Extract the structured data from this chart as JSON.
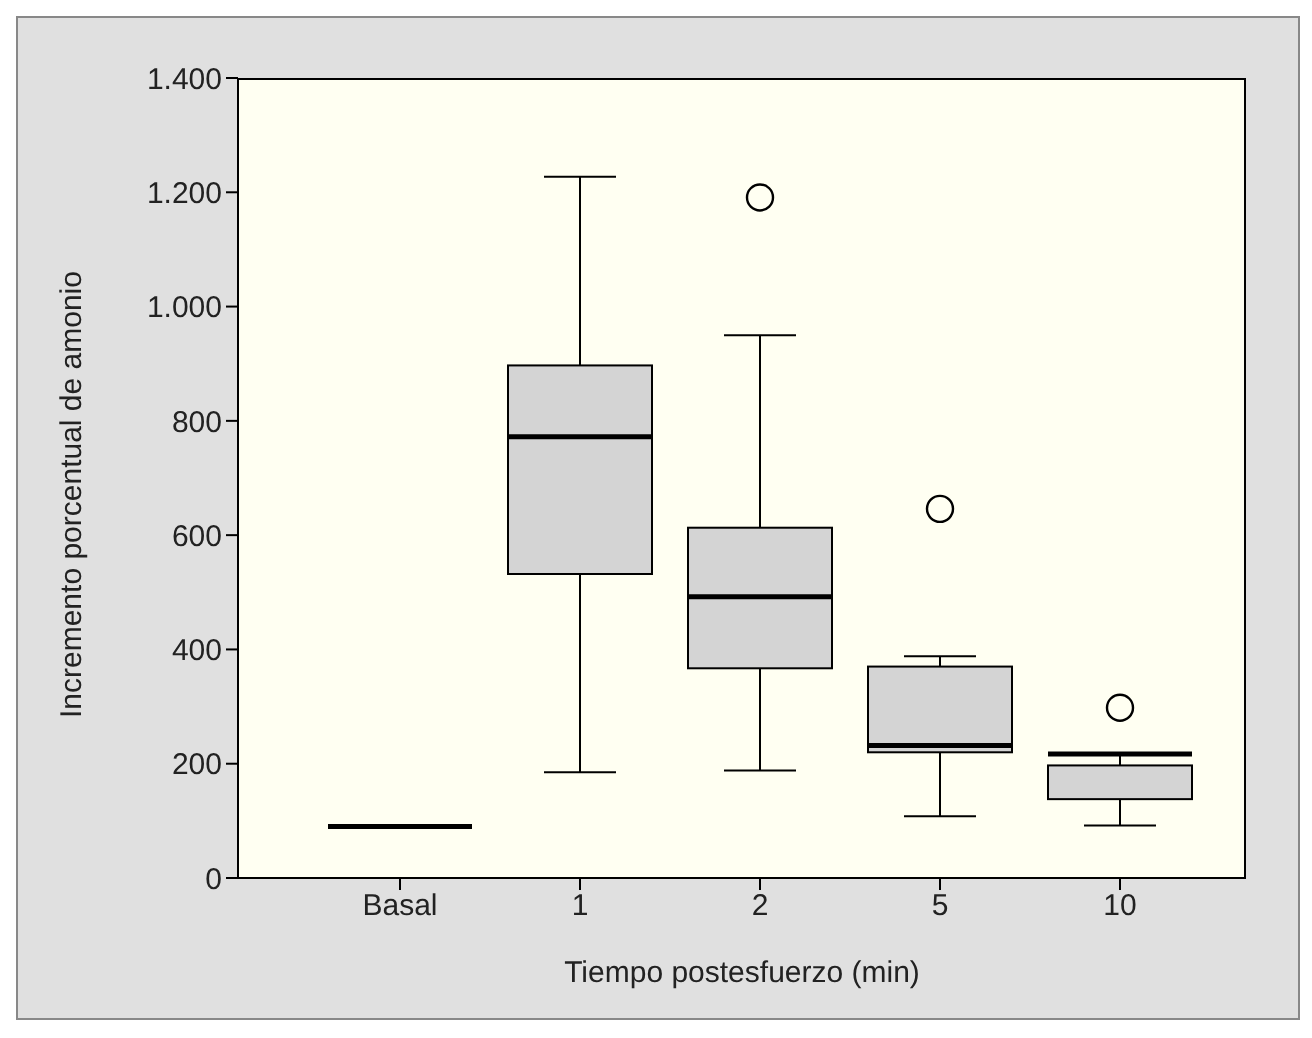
{
  "chart_data": {
    "type": "box",
    "xlabel": "Tiempo postesfuerzo (min)",
    "ylabel": "Incremento porcentual de amonio",
    "categories": [
      "Basal",
      "1",
      "2",
      "5",
      "10"
    ],
    "colors": [
      "#000000",
      "#d4d4d4",
      "#d4d4d4",
      "#d4d4d4",
      "#d4d4d4"
    ],
    "boxes": [
      {
        "low": 90,
        "q1": 90,
        "median": 90,
        "q3": 90,
        "high": 90
      },
      {
        "low": 185,
        "q1": 532,
        "median": 772,
        "q3": 897,
        "high": 1227
      },
      {
        "low": 188,
        "q1": 367,
        "median": 492,
        "q3": 613,
        "high": 950,
        "outliers": [
          1191
        ]
      },
      {
        "low": 108,
        "q1": 220,
        "median": 232,
        "q3": 370,
        "high": 388,
        "outliers": [
          646
        ]
      },
      {
        "low": 92,
        "q1": 138,
        "median": 217,
        "q3": 197,
        "high": 217,
        "outliers": [
          298
        ]
      }
    ],
    "ylim": [
      0,
      1400
    ],
    "yticks": [
      {
        "value": 0,
        "label": "0"
      },
      {
        "value": 200,
        "label": "200"
      },
      {
        "value": 400,
        "label": "400"
      },
      {
        "value": 600,
        "label": "600"
      },
      {
        "value": 800,
        "label": "800"
      },
      {
        "value": 1000,
        "label": "1.000"
      },
      {
        "value": 1200,
        "label": "1.200"
      },
      {
        "value": 1400,
        "label": "1.400"
      }
    ]
  }
}
